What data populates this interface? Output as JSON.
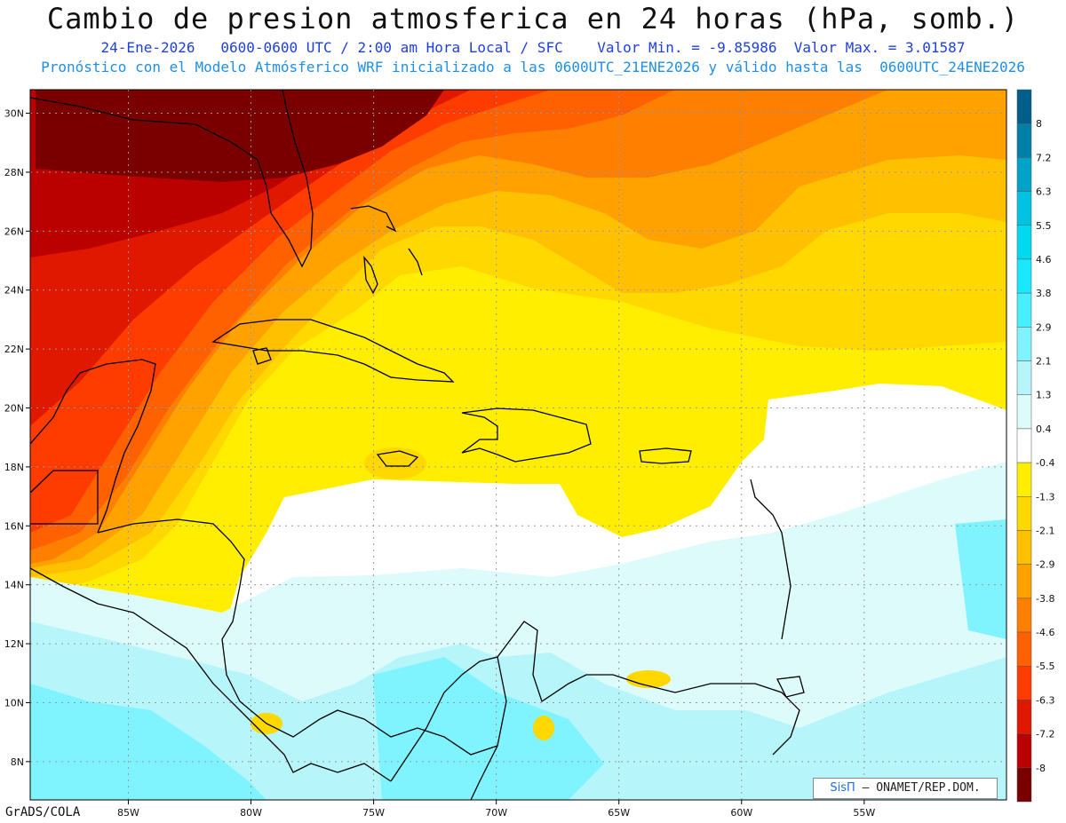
{
  "header": {
    "title": "Cambio de presion atmosferica en 24 horas (hPa, somb.)",
    "subtitle_line1": "24-Ene-2026   0600-0600 UTC / 2:00 am Hora Local / SFC    Valor Min. = -9.85986  Valor Max. = 3.01587",
    "subtitle_line2": "Pronóstico con el Modelo Atmósferico WRF inicializado a las 0600UTC_21ENE2026 y válido hasta las  0600UTC_24ENE2026"
  },
  "map": {
    "lon_range": [
      -89,
      -49.2
    ],
    "lat_range": [
      6.7,
      30.8
    ],
    "lon_ticks": [
      {
        "value": -85,
        "label": "85W"
      },
      {
        "value": -80,
        "label": "80W"
      },
      {
        "value": -75,
        "label": "75W"
      },
      {
        "value": -70,
        "label": "70W"
      },
      {
        "value": -65,
        "label": "65W"
      },
      {
        "value": -60,
        "label": "60W"
      },
      {
        "value": -55,
        "label": "55W"
      }
    ],
    "lat_ticks": [
      {
        "value": 30,
        "label": "30N"
      },
      {
        "value": 28,
        "label": "28N"
      },
      {
        "value": 26,
        "label": "26N"
      },
      {
        "value": 24,
        "label": "24N"
      },
      {
        "value": 22,
        "label": "22N"
      },
      {
        "value": 20,
        "label": "20N"
      },
      {
        "value": 18,
        "label": "18N"
      },
      {
        "value": 16,
        "label": "16N"
      },
      {
        "value": 14,
        "label": "14N"
      },
      {
        "value": 12,
        "label": "12N"
      },
      {
        "value": 10,
        "label": "10N"
      },
      {
        "value": 8,
        "label": "8N"
      }
    ],
    "grid": true
  },
  "colorbar": {
    "colors": [
      "#005f8a",
      "#0080a8",
      "#00a3c8",
      "#00c3e3",
      "#00d9f0",
      "#1ae8ff",
      "#48f0ff",
      "#7ff4ff",
      "#b6f6fb",
      "#ddfbfb",
      "#ffffff",
      "#ffee00",
      "#ffd800",
      "#ffc000",
      "#ffa200",
      "#ff8000",
      "#ff6000",
      "#ff3c00",
      "#e01800",
      "#bb0000",
      "#7a0000"
    ],
    "labels": [
      "8",
      "7.2",
      "6.3",
      "5.5",
      "4.6",
      "3.8",
      "2.9",
      "2.1",
      "1.3",
      "0.4",
      "-0.4",
      "-1.3",
      "-2.1",
      "-2.9",
      "-3.8",
      "-4.6",
      "-5.5",
      "-6.3",
      "-7.2",
      "-8"
    ]
  },
  "credit": {
    "logo_text": "SisΠ",
    "org_text": " – ONAMET/REP.DOM."
  },
  "footer": {
    "label": "GrADS/COLA"
  }
}
